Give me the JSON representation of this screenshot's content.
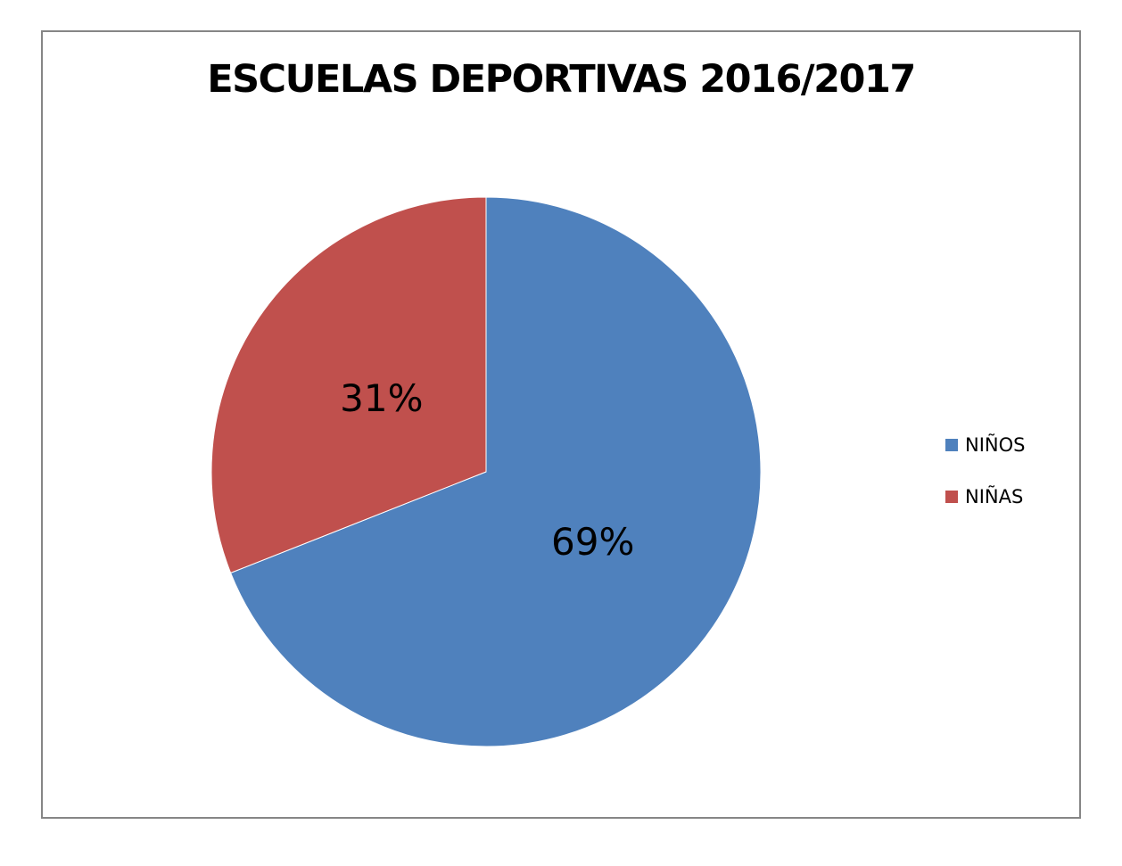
{
  "chart_data": {
    "type": "pie",
    "title": "ESCUELAS DEPORTIVAS 2016/2017",
    "categories": [
      "NIÑOS",
      "NIÑAS"
    ],
    "values": [
      69,
      31
    ],
    "labels": [
      "69%",
      "31%"
    ],
    "colors": [
      "#4F81BD",
      "#C0504D"
    ],
    "legend_position": "right",
    "start_angle": "top, clockwise"
  }
}
